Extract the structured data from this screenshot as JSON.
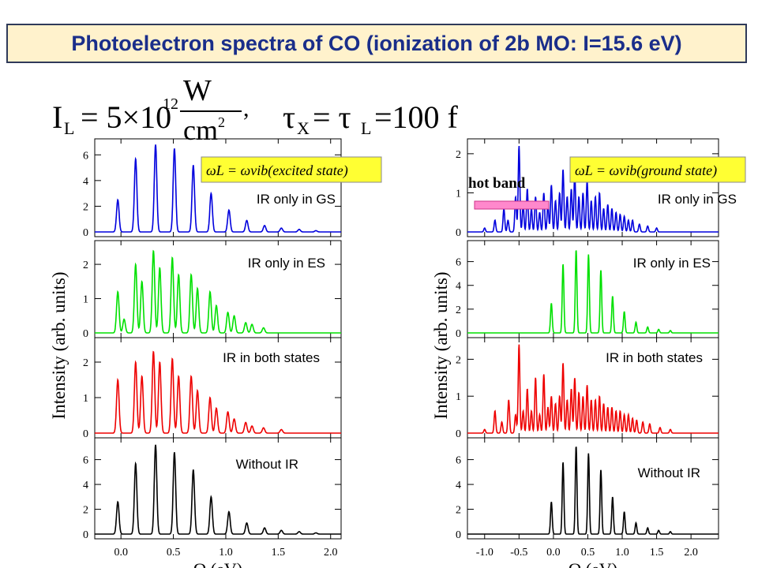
{
  "title": "Photoelectron spectra of CO (ionization of 2b MO: I=15.6 eV)",
  "formula": {
    "intensity_lhs": "I",
    "intensity_sub": "L",
    "intensity_eq": "= 5×10",
    "intensity_exp": "12",
    "unit_num": "W",
    "unit_den": "cm",
    "unit_den_exp": "2",
    "tau_lhs": "τ",
    "tau_sub_x": "X",
    "tau_mid": "= τ",
    "tau_sub_l": "L",
    "tau_val": "=100 f"
  },
  "colors": {
    "blue": "#0000dd",
    "green": "#00e000",
    "red": "#ee0000",
    "black": "#000000",
    "condition_bg": "#ffff33",
    "hot_band_bar": "#ff88cc"
  },
  "chart_data": [
    {
      "type": "line",
      "name": "left",
      "xlabel": "Ω (eV)",
      "ylabel": "Intensity (arb. units)",
      "xlim": [
        -0.25,
        2.1
      ],
      "x_ticks": [
        "0.0",
        "0.5",
        "1.0",
        "1.5",
        "2.0"
      ],
      "condition_label": "ωL = ωvib(excited  state)",
      "panels": [
        {
          "label": "IR only in GS",
          "color": "blue",
          "ylim": [
            0,
            7
          ],
          "y_ticks": [
            "0",
            "2",
            "4",
            "6"
          ],
          "peaks": [
            {
              "x": -0.03,
              "y": 2.5
            },
            {
              "x": 0.14,
              "y": 5.7
            },
            {
              "x": 0.33,
              "y": 6.8
            },
            {
              "x": 0.51,
              "y": 6.5
            },
            {
              "x": 0.69,
              "y": 5.2
            },
            {
              "x": 0.86,
              "y": 3.0
            },
            {
              "x": 1.03,
              "y": 1.7
            },
            {
              "x": 1.2,
              "y": 0.9
            },
            {
              "x": 1.37,
              "y": 0.5
            },
            {
              "x": 1.53,
              "y": 0.3
            },
            {
              "x": 1.7,
              "y": 0.2
            },
            {
              "x": 1.86,
              "y": 0.1
            }
          ]
        },
        {
          "label": "IR only in ES",
          "color": "green",
          "ylim": [
            0,
            2.6
          ],
          "y_ticks": [
            "0",
            "1",
            "2"
          ],
          "peaks": [
            {
              "x": -0.03,
              "y": 1.2
            },
            {
              "x": 0.03,
              "y": 0.4
            },
            {
              "x": 0.14,
              "y": 2.0
            },
            {
              "x": 0.2,
              "y": 1.5
            },
            {
              "x": 0.31,
              "y": 2.4
            },
            {
              "x": 0.37,
              "y": 1.9
            },
            {
              "x": 0.49,
              "y": 2.2
            },
            {
              "x": 0.55,
              "y": 1.7
            },
            {
              "x": 0.67,
              "y": 1.7
            },
            {
              "x": 0.73,
              "y": 1.3
            },
            {
              "x": 0.85,
              "y": 1.2
            },
            {
              "x": 0.91,
              "y": 0.8
            },
            {
              "x": 1.02,
              "y": 0.6
            },
            {
              "x": 1.08,
              "y": 0.5
            },
            {
              "x": 1.19,
              "y": 0.3
            },
            {
              "x": 1.25,
              "y": 0.25
            },
            {
              "x": 1.36,
              "y": 0.15
            }
          ]
        },
        {
          "label": "IR in both states",
          "color": "red",
          "ylim": [
            0,
            2.6
          ],
          "y_ticks": [
            "0",
            "1",
            "2"
          ],
          "peaks": [
            {
              "x": -0.03,
              "y": 1.5
            },
            {
              "x": 0.14,
              "y": 2.0
            },
            {
              "x": 0.2,
              "y": 1.6
            },
            {
              "x": 0.31,
              "y": 2.3
            },
            {
              "x": 0.37,
              "y": 2.0
            },
            {
              "x": 0.49,
              "y": 2.1
            },
            {
              "x": 0.55,
              "y": 1.6
            },
            {
              "x": 0.67,
              "y": 1.6
            },
            {
              "x": 0.73,
              "y": 1.2
            },
            {
              "x": 0.85,
              "y": 1.0
            },
            {
              "x": 0.91,
              "y": 0.7
            },
            {
              "x": 1.02,
              "y": 0.6
            },
            {
              "x": 1.08,
              "y": 0.4
            },
            {
              "x": 1.19,
              "y": 0.3
            },
            {
              "x": 1.25,
              "y": 0.2
            },
            {
              "x": 1.36,
              "y": 0.15
            },
            {
              "x": 1.53,
              "y": 0.1
            }
          ]
        },
        {
          "label": "Without IR",
          "color": "black",
          "ylim": [
            0,
            7.5
          ],
          "y_ticks": [
            "0",
            "2",
            "4",
            "6"
          ],
          "peaks": [
            {
              "x": -0.03,
              "y": 2.6
            },
            {
              "x": 0.14,
              "y": 5.7
            },
            {
              "x": 0.33,
              "y": 7.2
            },
            {
              "x": 0.51,
              "y": 6.6
            },
            {
              "x": 0.69,
              "y": 5.2
            },
            {
              "x": 0.86,
              "y": 3.0
            },
            {
              "x": 1.03,
              "y": 1.8
            },
            {
              "x": 1.2,
              "y": 0.9
            },
            {
              "x": 1.37,
              "y": 0.5
            },
            {
              "x": 1.53,
              "y": 0.3
            },
            {
              "x": 1.7,
              "y": 0.2
            },
            {
              "x": 1.86,
              "y": 0.1
            }
          ]
        }
      ]
    },
    {
      "type": "line",
      "name": "right",
      "xlabel": "Ω (eV)",
      "ylabel": "Intensity (arb. units)",
      "xlim": [
        -1.25,
        2.4
      ],
      "x_ticks": [
        "-1.0",
        "-0.5",
        "0.0",
        "0.5",
        "1.0",
        "1.5",
        "2.0"
      ],
      "condition_label": "ωL = ωvib(ground  state)",
      "hot_band_label": "hot band",
      "panels": [
        {
          "label": "IR only in GS",
          "color": "blue",
          "ylim": [
            0,
            2.3
          ],
          "y_ticks": [
            "0",
            "1",
            "2"
          ],
          "peaks": [
            {
              "x": -1.0,
              "y": 0.1
            },
            {
              "x": -0.85,
              "y": 0.3
            },
            {
              "x": -0.72,
              "y": 0.6
            },
            {
              "x": -0.66,
              "y": 0.3
            },
            {
              "x": -0.55,
              "y": 0.9
            },
            {
              "x": -0.5,
              "y": 2.2
            },
            {
              "x": -0.44,
              "y": 0.7
            },
            {
              "x": -0.38,
              "y": 1.1
            },
            {
              "x": -0.32,
              "y": 0.6
            },
            {
              "x": -0.26,
              "y": 0.9
            },
            {
              "x": -0.2,
              "y": 0.5
            },
            {
              "x": -0.14,
              "y": 1.0
            },
            {
              "x": -0.08,
              "y": 0.7
            },
            {
              "x": -0.03,
              "y": 1.2
            },
            {
              "x": 0.03,
              "y": 0.8
            },
            {
              "x": 0.09,
              "y": 1.0
            },
            {
              "x": 0.14,
              "y": 1.6
            },
            {
              "x": 0.2,
              "y": 0.9
            },
            {
              "x": 0.26,
              "y": 1.1
            },
            {
              "x": 0.31,
              "y": 1.5
            },
            {
              "x": 0.37,
              "y": 0.9
            },
            {
              "x": 0.43,
              "y": 1.0
            },
            {
              "x": 0.49,
              "y": 1.3
            },
            {
              "x": 0.55,
              "y": 0.8
            },
            {
              "x": 0.61,
              "y": 0.9
            },
            {
              "x": 0.67,
              "y": 1.0
            },
            {
              "x": 0.73,
              "y": 0.6
            },
            {
              "x": 0.79,
              "y": 0.7
            },
            {
              "x": 0.85,
              "y": 0.6
            },
            {
              "x": 0.91,
              "y": 0.5
            },
            {
              "x": 0.97,
              "y": 0.45
            },
            {
              "x": 1.03,
              "y": 0.4
            },
            {
              "x": 1.09,
              "y": 0.3
            },
            {
              "x": 1.15,
              "y": 0.3
            },
            {
              "x": 1.25,
              "y": 0.2
            },
            {
              "x": 1.37,
              "y": 0.15
            },
            {
              "x": 1.5,
              "y": 0.1
            }
          ]
        },
        {
          "label": "IR only in ES",
          "color": "green",
          "ylim": [
            0,
            7.5
          ],
          "y_ticks": [
            "0",
            "2",
            "4",
            "6"
          ],
          "peaks": [
            {
              "x": -0.03,
              "y": 2.5
            },
            {
              "x": 0.14,
              "y": 5.8
            },
            {
              "x": 0.33,
              "y": 7.0
            },
            {
              "x": 0.51,
              "y": 6.6
            },
            {
              "x": 0.69,
              "y": 5.3
            },
            {
              "x": 0.86,
              "y": 3.1
            },
            {
              "x": 1.03,
              "y": 1.8
            },
            {
              "x": 1.2,
              "y": 0.9
            },
            {
              "x": 1.37,
              "y": 0.5
            },
            {
              "x": 1.53,
              "y": 0.3
            },
            {
              "x": 1.7,
              "y": 0.2
            }
          ]
        },
        {
          "label": "IR in both states",
          "color": "red",
          "ylim": [
            0,
            2.5
          ],
          "y_ticks": [
            "0",
            "1",
            "2"
          ],
          "peaks": [
            {
              "x": -1.0,
              "y": 0.1
            },
            {
              "x": -0.85,
              "y": 0.6
            },
            {
              "x": -0.75,
              "y": 0.3
            },
            {
              "x": -0.65,
              "y": 0.9
            },
            {
              "x": -0.55,
              "y": 0.5
            },
            {
              "x": -0.5,
              "y": 2.4
            },
            {
              "x": -0.44,
              "y": 0.6
            },
            {
              "x": -0.38,
              "y": 1.2
            },
            {
              "x": -0.32,
              "y": 0.6
            },
            {
              "x": -0.26,
              "y": 1.5
            },
            {
              "x": -0.2,
              "y": 0.5
            },
            {
              "x": -0.14,
              "y": 1.6
            },
            {
              "x": -0.08,
              "y": 0.7
            },
            {
              "x": -0.03,
              "y": 1.0
            },
            {
              "x": 0.03,
              "y": 0.8
            },
            {
              "x": 0.09,
              "y": 1.0
            },
            {
              "x": 0.14,
              "y": 1.9
            },
            {
              "x": 0.2,
              "y": 0.9
            },
            {
              "x": 0.26,
              "y": 1.2
            },
            {
              "x": 0.31,
              "y": 1.5
            },
            {
              "x": 0.37,
              "y": 1.1
            },
            {
              "x": 0.43,
              "y": 1.0
            },
            {
              "x": 0.49,
              "y": 1.3
            },
            {
              "x": 0.55,
              "y": 0.9
            },
            {
              "x": 0.61,
              "y": 0.9
            },
            {
              "x": 0.67,
              "y": 1.0
            },
            {
              "x": 0.73,
              "y": 0.8
            },
            {
              "x": 0.79,
              "y": 0.7
            },
            {
              "x": 0.85,
              "y": 0.7
            },
            {
              "x": 0.91,
              "y": 0.6
            },
            {
              "x": 0.97,
              "y": 0.6
            },
            {
              "x": 1.03,
              "y": 0.5
            },
            {
              "x": 1.09,
              "y": 0.5
            },
            {
              "x": 1.15,
              "y": 0.4
            },
            {
              "x": 1.21,
              "y": 0.35
            },
            {
              "x": 1.3,
              "y": 0.3
            },
            {
              "x": 1.4,
              "y": 0.25
            },
            {
              "x": 1.55,
              "y": 0.15
            },
            {
              "x": 1.7,
              "y": 0.1
            }
          ]
        },
        {
          "label": "Without IR",
          "color": "black",
          "ylim": [
            0,
            7.5
          ],
          "y_ticks": [
            "0",
            "2",
            "4",
            "6"
          ],
          "peaks": [
            {
              "x": -0.03,
              "y": 2.6
            },
            {
              "x": 0.14,
              "y": 5.8
            },
            {
              "x": 0.33,
              "y": 7.1
            },
            {
              "x": 0.51,
              "y": 6.5
            },
            {
              "x": 0.69,
              "y": 5.2
            },
            {
              "x": 0.86,
              "y": 3.0
            },
            {
              "x": 1.03,
              "y": 1.8
            },
            {
              "x": 1.2,
              "y": 0.9
            },
            {
              "x": 1.37,
              "y": 0.5
            },
            {
              "x": 1.53,
              "y": 0.3
            },
            {
              "x": 1.7,
              "y": 0.2
            }
          ]
        }
      ]
    }
  ]
}
